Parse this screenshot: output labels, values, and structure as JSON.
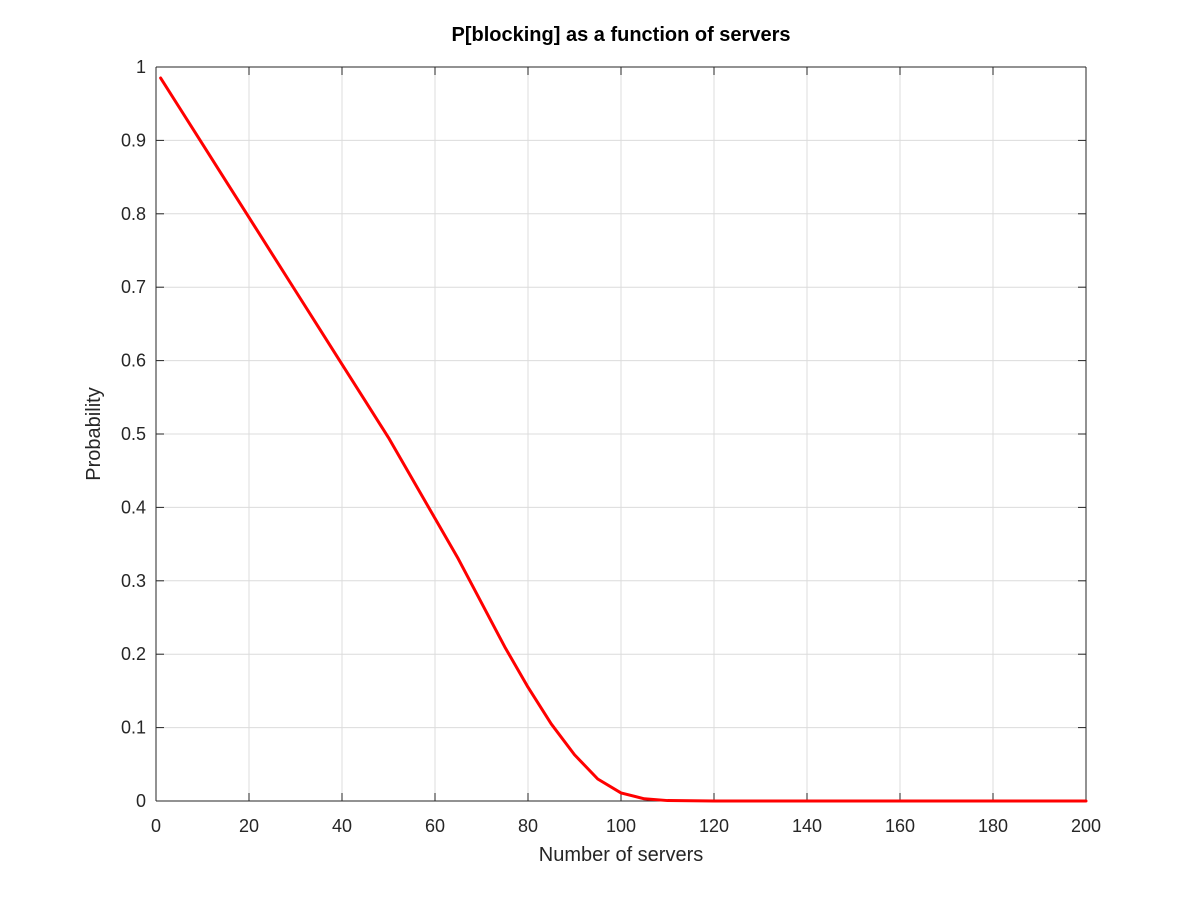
{
  "chart_data": {
    "type": "line",
    "title": "P[blocking] as a function of servers",
    "xlabel": "Number of servers",
    "ylabel": "Probability",
    "xlim": [
      0,
      200
    ],
    "ylim": [
      0,
      1
    ],
    "x_ticks": [
      0,
      20,
      40,
      60,
      80,
      100,
      120,
      140,
      160,
      180,
      200
    ],
    "y_ticks": [
      0,
      0.1,
      0.2,
      0.3,
      0.4,
      0.5,
      0.6,
      0.7,
      0.8,
      0.9,
      1
    ],
    "x_tick_labels": [
      "0",
      "20",
      "40",
      "60",
      "80",
      "100",
      "120",
      "140",
      "160",
      "180",
      "200"
    ],
    "y_tick_labels": [
      "0",
      "0.1",
      "0.2",
      "0.3",
      "0.4",
      "0.5",
      "0.6",
      "0.7",
      "0.8",
      "0.9",
      "1"
    ],
    "grid": true,
    "series": [
      {
        "color": "#ff0000",
        "x": [
          1,
          5,
          10,
          15,
          20,
          25,
          30,
          35,
          40,
          45,
          50,
          55,
          60,
          65,
          70,
          75,
          80,
          85,
          90,
          95,
          100,
          105,
          110,
          120,
          140,
          160,
          180,
          200
        ],
        "y": [
          0.985,
          0.945,
          0.895,
          0.845,
          0.795,
          0.745,
          0.695,
          0.645,
          0.595,
          0.545,
          0.495,
          0.44,
          0.385,
          0.33,
          0.27,
          0.21,
          0.155,
          0.105,
          0.063,
          0.03,
          0.011,
          0.003,
          0.0006,
          0.0,
          0.0,
          0.0,
          0.0,
          0.0
        ]
      }
    ]
  }
}
